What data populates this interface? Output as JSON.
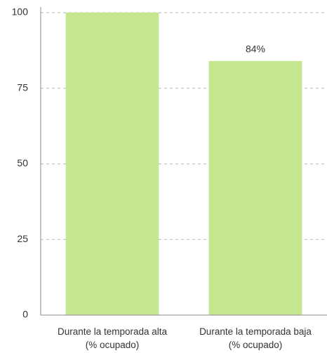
{
  "chart_data": {
    "type": "bar",
    "categories": [
      "Durante la temporada alta\n(% ocupado)",
      "Durante la temporada baja\n(% ocupado)"
    ],
    "values": [
      100,
      84
    ],
    "value_labels": [
      null,
      "84%"
    ],
    "color": "#c5e78f",
    "ylim": [
      0,
      100
    ],
    "yticks": [
      0,
      25,
      50,
      75,
      100
    ],
    "grid": true
  }
}
